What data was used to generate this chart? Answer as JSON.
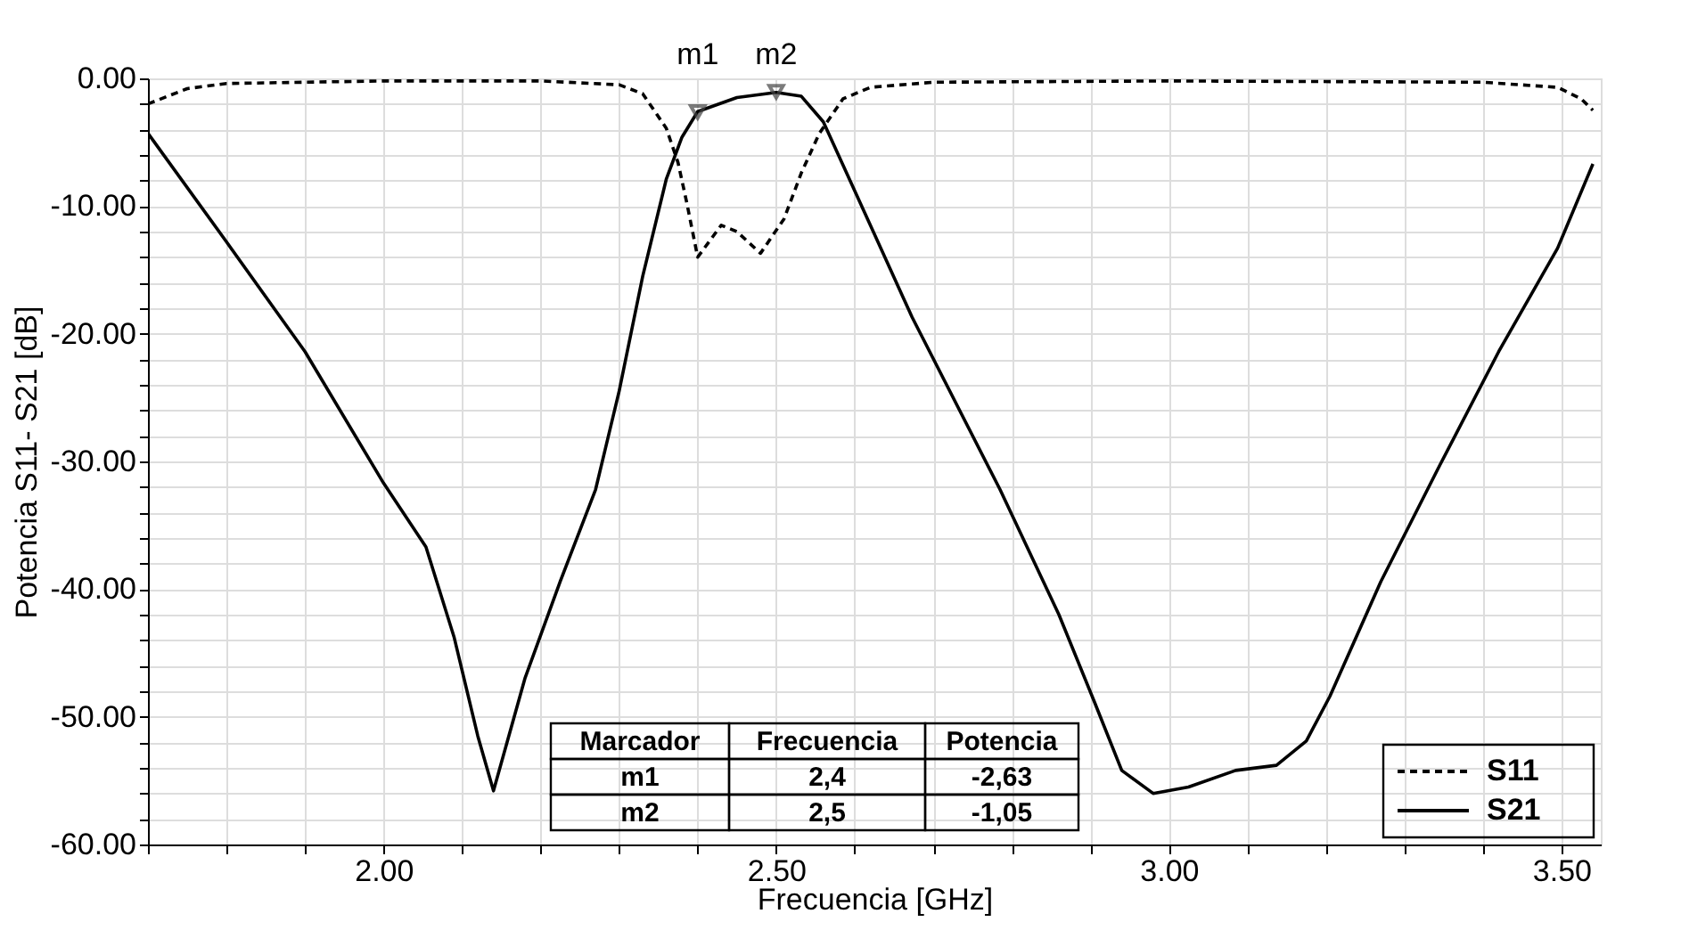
{
  "chart_data": {
    "type": "line",
    "xlabel": "Frecuencia [GHz]",
    "ylabel": "Potencia S11- S21 [dB]",
    "xlim": [
      1.7,
      3.55
    ],
    "ylim": [
      -60,
      0
    ],
    "xticks": [
      {
        "value": 1.7,
        "label": null
      },
      {
        "value": 1.8,
        "label": null
      },
      {
        "value": 1.9,
        "label": null
      },
      {
        "value": 2.0,
        "label": "2.00"
      },
      {
        "value": 2.1,
        "label": null
      },
      {
        "value": 2.2,
        "label": null
      },
      {
        "value": 2.3,
        "label": null
      },
      {
        "value": 2.4,
        "label": null
      },
      {
        "value": 2.5,
        "label": "2.50"
      },
      {
        "value": 2.6,
        "label": null
      },
      {
        "value": 2.7,
        "label": null
      },
      {
        "value": 2.8,
        "label": null
      },
      {
        "value": 2.9,
        "label": null
      },
      {
        "value": 3.0,
        "label": "3.00"
      },
      {
        "value": 3.1,
        "label": null
      },
      {
        "value": 3.2,
        "label": null
      },
      {
        "value": 3.3,
        "label": null
      },
      {
        "value": 3.4,
        "label": null
      },
      {
        "value": 3.5,
        "label": "3.50"
      }
    ],
    "yticks": [
      {
        "value": 0,
        "label": "0.00"
      },
      {
        "value": -2,
        "label": null
      },
      {
        "value": -4,
        "label": null
      },
      {
        "value": -6,
        "label": null
      },
      {
        "value": -8,
        "label": null
      },
      {
        "value": -10,
        "label": "-10.00"
      },
      {
        "value": -12,
        "label": null
      },
      {
        "value": -14,
        "label": null
      },
      {
        "value": -16,
        "label": null
      },
      {
        "value": -18,
        "label": null
      },
      {
        "value": -20,
        "label": "-20.00"
      },
      {
        "value": -22,
        "label": null
      },
      {
        "value": -24,
        "label": null
      },
      {
        "value": -26,
        "label": null
      },
      {
        "value": -28,
        "label": null
      },
      {
        "value": -30,
        "label": "-30.00"
      },
      {
        "value": -32,
        "label": null
      },
      {
        "value": -34,
        "label": null
      },
      {
        "value": -36,
        "label": null
      },
      {
        "value": -38,
        "label": null
      },
      {
        "value": -40,
        "label": "-40.00"
      },
      {
        "value": -42,
        "label": null
      },
      {
        "value": -44,
        "label": null
      },
      {
        "value": -46,
        "label": null
      },
      {
        "value": -48,
        "label": null
      },
      {
        "value": -50,
        "label": "-50.00"
      },
      {
        "value": -52,
        "label": null
      },
      {
        "value": -54,
        "label": null
      },
      {
        "value": -56,
        "label": null
      },
      {
        "value": -58,
        "label": null
      },
      {
        "value": -60,
        "label": "-60.00"
      }
    ],
    "grid": true,
    "legend": "bottom right",
    "marker": "none",
    "series": [
      {
        "name": "S11",
        "color": "#000000",
        "line_style": "dashed",
        "x": [
          1.7,
          1.75,
          1.8,
          2.0,
          2.2,
          2.3,
          2.33,
          2.36,
          2.375,
          2.386,
          2.4,
          2.43,
          2.45,
          2.48,
          2.51,
          2.532,
          2.555,
          2.585,
          2.62,
          2.7,
          3.0,
          3.4,
          3.495,
          3.525,
          3.54
        ],
        "values": [
          -2.0,
          -0.8,
          -0.4,
          -0.2,
          -0.2,
          -0.5,
          -1.2,
          -3.9,
          -6.6,
          -9.7,
          -14.0,
          -11.5,
          -12.0,
          -13.7,
          -11.0,
          -7.4,
          -4.3,
          -1.6,
          -0.7,
          -0.3,
          -0.2,
          -0.3,
          -0.7,
          -1.6,
          -2.5
        ]
      },
      {
        "name": "S21",
        "color": "#000000",
        "line_style": "solid",
        "x": [
          1.7,
          1.8,
          1.9,
          2.0,
          2.054,
          2.09,
          2.12,
          2.14,
          2.18,
          2.225,
          2.27,
          2.3,
          2.33,
          2.36,
          2.38,
          2.4,
          2.45,
          2.5,
          2.532,
          2.56,
          2.6,
          2.673,
          2.785,
          2.86,
          2.905,
          2.94,
          2.98,
          3.025,
          3.085,
          3.137,
          3.175,
          3.205,
          3.27,
          3.345,
          3.42,
          3.495,
          3.54
        ],
        "values": [
          -4.3,
          -12.8,
          -21.4,
          -31.7,
          -36.7,
          -43.8,
          -51.5,
          -55.8,
          -47.0,
          -39.4,
          -32.2,
          -24.5,
          -15.5,
          -7.9,
          -4.6,
          -2.6,
          -1.5,
          -1.1,
          -1.4,
          -3.4,
          -8.8,
          -18.7,
          -32.2,
          -42.0,
          -48.8,
          -54.2,
          -56.0,
          -55.5,
          -54.2,
          -53.8,
          -51.9,
          -48.4,
          -39.4,
          -30.3,
          -21.4,
          -13.3,
          -6.7
        ]
      }
    ],
    "annotations": [
      {
        "text": "m1",
        "x": 2.4,
        "y": -2.63
      },
      {
        "text": "m2",
        "x": 2.5,
        "y": -1.05
      },
      "Marcador",
      "Frecuencia",
      "Potencia",
      "m1",
      "2,4",
      "-2,63",
      "m2",
      "2,5",
      "-1,05"
    ]
  }
}
